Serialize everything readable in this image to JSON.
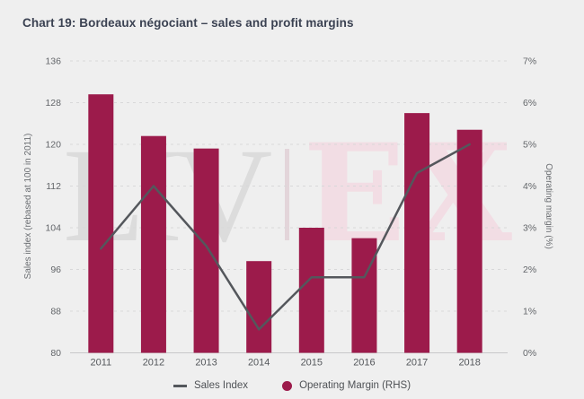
{
  "chart_data": {
    "type": "combo-bar-line",
    "title": "Chart 19: Bordeaux négociant – sales and profit margins",
    "categories": [
      "2011",
      "2012",
      "2013",
      "2014",
      "2015",
      "2016",
      "2017",
      "2018"
    ],
    "series": [
      {
        "name": "Sales Index",
        "type": "line",
        "axis": "left",
        "color": "#54575c",
        "values": [
          100,
          112,
          100.5,
          84.5,
          94.5,
          94.5,
          114.5,
          120
        ]
      },
      {
        "name": "Operating Margin (RHS)",
        "type": "bar",
        "axis": "right",
        "color": "#9c1b4b",
        "values": [
          6.2,
          5.2,
          4.9,
          2.2,
          3.0,
          2.75,
          5.75,
          5.35
        ]
      }
    ],
    "left_axis": {
      "label": "Sales index (rebased at 100 in 2011)",
      "min": 80,
      "max": 136,
      "step": 8,
      "ticks": [
        "80",
        "88",
        "96",
        "104",
        "112",
        "120",
        "128",
        "136"
      ]
    },
    "right_axis": {
      "label": "Operating margin (%)",
      "min": 0,
      "max": 7,
      "step": 1,
      "ticks": [
        "0%",
        "1%",
        "2%",
        "3%",
        "4%",
        "5%",
        "6%",
        "7%"
      ]
    },
    "grid": "horizontal-dashed",
    "legend_position": "bottom"
  },
  "legend": {
    "items": [
      {
        "label": "Sales Index",
        "swatch": "line",
        "color": "#54575c"
      },
      {
        "label": "Operating Margin (RHS)",
        "swatch": "circle",
        "color": "#9c1b4b"
      }
    ]
  },
  "watermark": {
    "left": "LIV",
    "separator": "|",
    "right": "EX"
  },
  "colors": {
    "background": "#efefef",
    "bar": "#9c1b4b",
    "line": "#54575c",
    "title_text": "#3b4252",
    "tick_text": "#63666a",
    "gridline": "#d8d8d9",
    "baseline": "#c8c8c9",
    "watermark_gray": "#dcdcdc",
    "watermark_pink": "#f2dde4"
  }
}
